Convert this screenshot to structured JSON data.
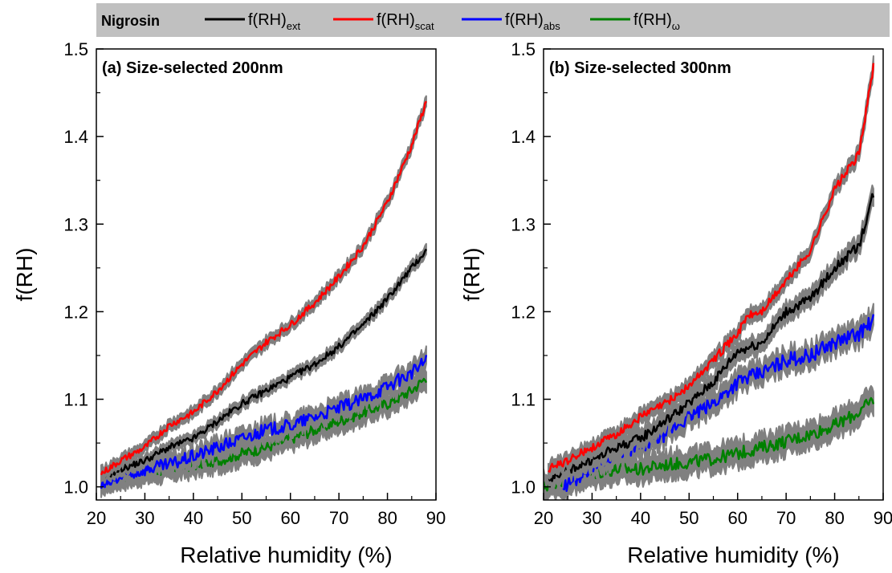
{
  "legend": {
    "title": "Nigrosin",
    "background": "#c0c0c0",
    "entries": [
      {
        "key": "ext",
        "base": "f(RH)",
        "sub": "ext",
        "color": "#000000"
      },
      {
        "key": "scat",
        "base": "f(RH)",
        "sub": "scat",
        "color": "#ff0000"
      },
      {
        "key": "abs",
        "base": "f(RH)",
        "sub": "abs",
        "color": "#0000ff"
      },
      {
        "key": "omega",
        "base": "f(RH)",
        "sub": "ω",
        "color": "#008000"
      }
    ]
  },
  "chart_data": [
    {
      "type": "line",
      "title": "(a) Size-selected 200nm",
      "xlabel": "Relative humidity (%)",
      "ylabel": "f(RH)",
      "xlim": [
        20,
        90
      ],
      "ylim": [
        0.985,
        1.5
      ],
      "xticks": [
        20,
        30,
        40,
        50,
        60,
        70,
        80,
        90
      ],
      "yticks": [
        1.0,
        1.1,
        1.2,
        1.3,
        1.4,
        1.5
      ],
      "ytick_labels": [
        "1.0",
        "1.1",
        "1.2",
        "1.3",
        "1.4",
        "1.5"
      ],
      "uncertainty_band_color": "#808080",
      "series": [
        {
          "key": "scat",
          "x": [
            21,
            25,
            30,
            35,
            40,
            45,
            50,
            55,
            60,
            65,
            70,
            75,
            80,
            85,
            88
          ],
          "y": [
            1.015,
            1.03,
            1.045,
            1.07,
            1.085,
            1.11,
            1.14,
            1.165,
            1.185,
            1.21,
            1.24,
            1.275,
            1.325,
            1.39,
            1.44
          ],
          "band": 0.006
        },
        {
          "key": "ext",
          "x": [
            21,
            25,
            30,
            35,
            40,
            45,
            50,
            55,
            60,
            65,
            70,
            75,
            80,
            85,
            88
          ],
          "y": [
            1.01,
            1.02,
            1.03,
            1.045,
            1.055,
            1.075,
            1.095,
            1.11,
            1.125,
            1.14,
            1.16,
            1.185,
            1.215,
            1.25,
            1.27
          ],
          "band": 0.006
        },
        {
          "key": "abs",
          "x": [
            21,
            25,
            30,
            35,
            40,
            45,
            50,
            55,
            60,
            65,
            70,
            75,
            80,
            85,
            88
          ],
          "y": [
            1.0,
            1.01,
            1.02,
            1.025,
            1.035,
            1.045,
            1.055,
            1.065,
            1.07,
            1.08,
            1.09,
            1.1,
            1.115,
            1.13,
            1.145
          ],
          "band": 0.01
        },
        {
          "key": "omega",
          "x": [
            21,
            25,
            30,
            35,
            40,
            45,
            50,
            55,
            60,
            65,
            70,
            75,
            80,
            85,
            88
          ],
          "y": [
            1.008,
            1.012,
            1.017,
            1.02,
            1.025,
            1.03,
            1.038,
            1.045,
            1.055,
            1.065,
            1.075,
            1.085,
            1.095,
            1.11,
            1.125
          ],
          "band": 0.012
        }
      ]
    },
    {
      "type": "line",
      "title": "(b) Size-selected 300nm",
      "xlabel": "Relative humidity (%)",
      "ylabel": "f(RH)",
      "xlim": [
        20,
        90
      ],
      "ylim": [
        0.985,
        1.5
      ],
      "xticks": [
        20,
        30,
        40,
        50,
        60,
        70,
        80,
        90
      ],
      "yticks": [
        1.0,
        1.1,
        1.2,
        1.3,
        1.4,
        1.5
      ],
      "ytick_labels": [
        "1.0",
        "1.1",
        "1.2",
        "1.3",
        "1.4",
        "1.5"
      ],
      "uncertainty_band_color": "#808080",
      "series": [
        {
          "key": "scat",
          "x": [
            21,
            25,
            30,
            35,
            40,
            45,
            50,
            55,
            60,
            62,
            65,
            70,
            75,
            80,
            85,
            88
          ],
          "y": [
            1.02,
            1.03,
            1.045,
            1.06,
            1.08,
            1.095,
            1.115,
            1.145,
            1.175,
            1.195,
            1.2,
            1.235,
            1.27,
            1.34,
            1.38,
            1.48
          ],
          "band": 0.008
        },
        {
          "key": "ext",
          "x": [
            21,
            25,
            30,
            35,
            40,
            45,
            50,
            55,
            60,
            65,
            70,
            75,
            80,
            85,
            88
          ],
          "y": [
            1.01,
            1.02,
            1.03,
            1.045,
            1.055,
            1.075,
            1.095,
            1.12,
            1.155,
            1.165,
            1.2,
            1.215,
            1.25,
            1.275,
            1.335
          ],
          "band": 0.01
        },
        {
          "key": "abs",
          "x": [
            24,
            27,
            30,
            35,
            40,
            45,
            50,
            55,
            60,
            65,
            70,
            75,
            80,
            85,
            88
          ],
          "y": [
            1.0,
            1.01,
            1.025,
            1.04,
            1.045,
            1.06,
            1.08,
            1.095,
            1.12,
            1.13,
            1.145,
            1.15,
            1.165,
            1.175,
            1.19
          ],
          "band": 0.012
        },
        {
          "key": "omega",
          "x": [
            20,
            25,
            30,
            35,
            40,
            45,
            50,
            55,
            60,
            65,
            70,
            75,
            80,
            85,
            88
          ],
          "y": [
            1.0,
            1.01,
            1.015,
            1.02,
            1.02,
            1.025,
            1.028,
            1.032,
            1.038,
            1.045,
            1.052,
            1.06,
            1.07,
            1.085,
            1.1
          ],
          "band": 0.014
        }
      ]
    }
  ]
}
